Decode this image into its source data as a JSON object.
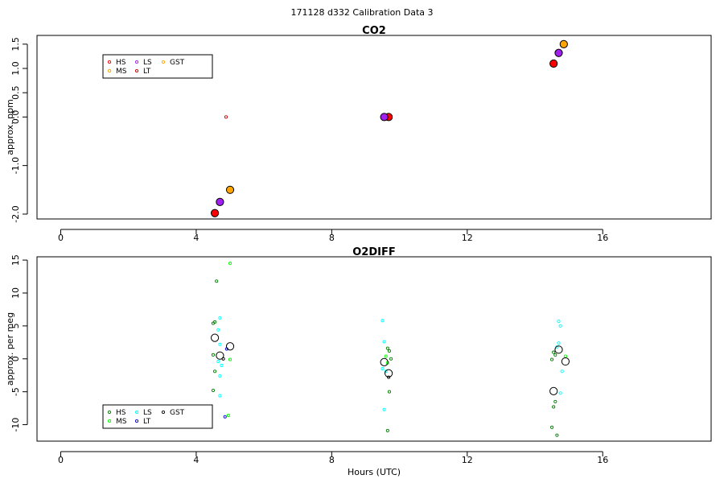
{
  "figure": {
    "title": "171128   d332   Calibration Data 3"
  },
  "chart_data": [
    {
      "type": "scatter",
      "title": "CO2",
      "xlabel": "",
      "ylabel": "approx. ppm",
      "xlim": [
        -0.7,
        19.2
      ],
      "ylim": [
        -2.1,
        1.68
      ],
      "xticks": [
        "0",
        "4",
        "8",
        "12",
        "16"
      ],
      "yticks": [
        "-2.0",
        "-1.0",
        "0.0",
        "0.5",
        "1.0",
        "1.5"
      ],
      "ytick_values": [
        -2.0,
        -1.0,
        0.0,
        0.5,
        1.0,
        1.5
      ],
      "legend": {
        "placement": "top-left",
        "entries": [
          "HS",
          "MS",
          "LS",
          "LT",
          "GST"
        ]
      },
      "series": [
        {
          "name": "HS",
          "color": "#ff0000",
          "size": "small",
          "points": [
            [
              4.55,
              -1.98
            ],
            [
              4.6,
              -1.95
            ]
          ]
        },
        {
          "name": "MS",
          "color": "#ffa500",
          "size": "small",
          "points": [
            [
              5.0,
              -1.5
            ]
          ]
        },
        {
          "name": "LS",
          "color": "#a020f0",
          "size": "small",
          "points": [
            [
              4.7,
              -1.75
            ]
          ]
        },
        {
          "name": "LT",
          "color": "#cd0000",
          "size": "small",
          "points": [
            [
              4.88,
              0.0
            ]
          ]
        },
        {
          "name": "HS",
          "color": "#ff0000",
          "size": "mean",
          "points": [
            [
              4.55,
              -1.98
            ],
            [
              9.68,
              0.0
            ],
            [
              14.55,
              1.1
            ]
          ]
        },
        {
          "name": "MS",
          "color": "#ffa500",
          "size": "mean",
          "points": [
            [
              5.0,
              -1.5
            ],
            [
              14.85,
              1.5
            ]
          ]
        },
        {
          "name": "LS",
          "color": "#a020f0",
          "size": "mean",
          "points": [
            [
              4.7,
              -1.75
            ],
            [
              9.55,
              0.0
            ],
            [
              14.7,
              1.32
            ]
          ]
        }
      ]
    },
    {
      "type": "scatter",
      "title": "O2DIFF",
      "xlabel": "Hours (UTC)",
      "ylabel": "approx. per meg",
      "xlim": [
        -0.7,
        19.2
      ],
      "ylim": [
        -12.5,
        15.5
      ],
      "xticks": [
        "0",
        "4",
        "8",
        "12",
        "16"
      ],
      "yticks": [
        "-10",
        "-5",
        "0",
        "5",
        "10",
        "15"
      ],
      "ytick_values": [
        -10,
        -5,
        0,
        5,
        10,
        15
      ],
      "legend": {
        "placement": "bottom-left",
        "entries": [
          "HS",
          "MS",
          "LS",
          "LT",
          "GST"
        ]
      },
      "series": [
        {
          "name": "HS",
          "color": "#008000",
          "size": "small",
          "points": [
            [
              4.5,
              5.4
            ],
            [
              4.55,
              5.6
            ],
            [
              4.6,
              11.8
            ],
            [
              4.5,
              0.6
            ],
            [
              4.55,
              -1.9
            ],
            [
              4.5,
              -4.8
            ],
            [
              9.65,
              1.6
            ],
            [
              9.7,
              1.2
            ],
            [
              9.75,
              0.0
            ],
            [
              9.7,
              -5.0
            ],
            [
              9.65,
              -10.9
            ],
            [
              14.55,
              1.0
            ],
            [
              14.6,
              0.6
            ],
            [
              14.5,
              -0.1
            ],
            [
              14.6,
              -6.5
            ],
            [
              14.55,
              -7.3
            ],
            [
              14.5,
              -10.4
            ],
            [
              14.65,
              -11.6
            ]
          ]
        },
        {
          "name": "MS",
          "color": "#00ff00",
          "size": "small",
          "points": [
            [
              5.0,
              14.5
            ],
            [
              5.0,
              -0.1
            ],
            [
              4.95,
              -8.6
            ],
            [
              9.6,
              0.4
            ],
            [
              9.65,
              -0.6
            ],
            [
              14.9,
              0.4
            ]
          ]
        },
        {
          "name": "LS",
          "color": "#00ffff",
          "size": "small",
          "points": [
            [
              4.7,
              6.2
            ],
            [
              4.65,
              4.4
            ],
            [
              4.7,
              2.2
            ],
            [
              4.75,
              -1.0
            ],
            [
              4.65,
              -0.4
            ],
            [
              4.7,
              -2.6
            ],
            [
              4.7,
              -5.6
            ],
            [
              9.5,
              5.8
            ],
            [
              9.55,
              2.6
            ],
            [
              9.5,
              -1.5
            ],
            [
              9.6,
              -1.9
            ],
            [
              9.55,
              -7.7
            ],
            [
              14.7,
              5.7
            ],
            [
              14.75,
              5.0
            ],
            [
              14.7,
              2.4
            ],
            [
              14.65,
              1.8
            ],
            [
              14.8,
              -1.9
            ],
            [
              14.75,
              -5.2
            ]
          ]
        },
        {
          "name": "LT",
          "color": "#0000cd",
          "size": "small",
          "points": [
            [
              4.9,
              1.5
            ],
            [
              4.85,
              -8.8
            ]
          ]
        },
        {
          "name": "GST",
          "color": "#000000",
          "size": "small",
          "points": [
            [
              4.8,
              0.0
            ],
            [
              9.68,
              -2.8
            ]
          ]
        },
        {
          "name": "GST",
          "color": "#000000",
          "size": "mean",
          "points": [
            [
              4.55,
              3.2
            ],
            [
              4.7,
              0.5
            ],
            [
              5.0,
              1.9
            ],
            [
              9.55,
              -0.5
            ],
            [
              9.68,
              -2.2
            ],
            [
              14.55,
              -4.9
            ],
            [
              14.7,
              1.4
            ],
            [
              14.9,
              -0.4
            ]
          ]
        }
      ]
    }
  ],
  "legends": [
    {
      "items": [
        {
          "label": "HS",
          "color": "#ff0000"
        },
        {
          "label": "MS",
          "color": "#ffa500"
        },
        {
          "label": "LS",
          "color": "#a020f0"
        },
        {
          "label": "LT",
          "color": "#cd0000"
        },
        {
          "label": "GST",
          "color": "#ffa500"
        }
      ]
    },
    {
      "items": [
        {
          "label": "HS",
          "color": "#008000"
        },
        {
          "label": "MS",
          "color": "#00ff00"
        },
        {
          "label": "LS",
          "color": "#00ffff"
        },
        {
          "label": "LT",
          "color": "#0000cd"
        },
        {
          "label": "GST",
          "color": "#000000"
        }
      ]
    }
  ]
}
